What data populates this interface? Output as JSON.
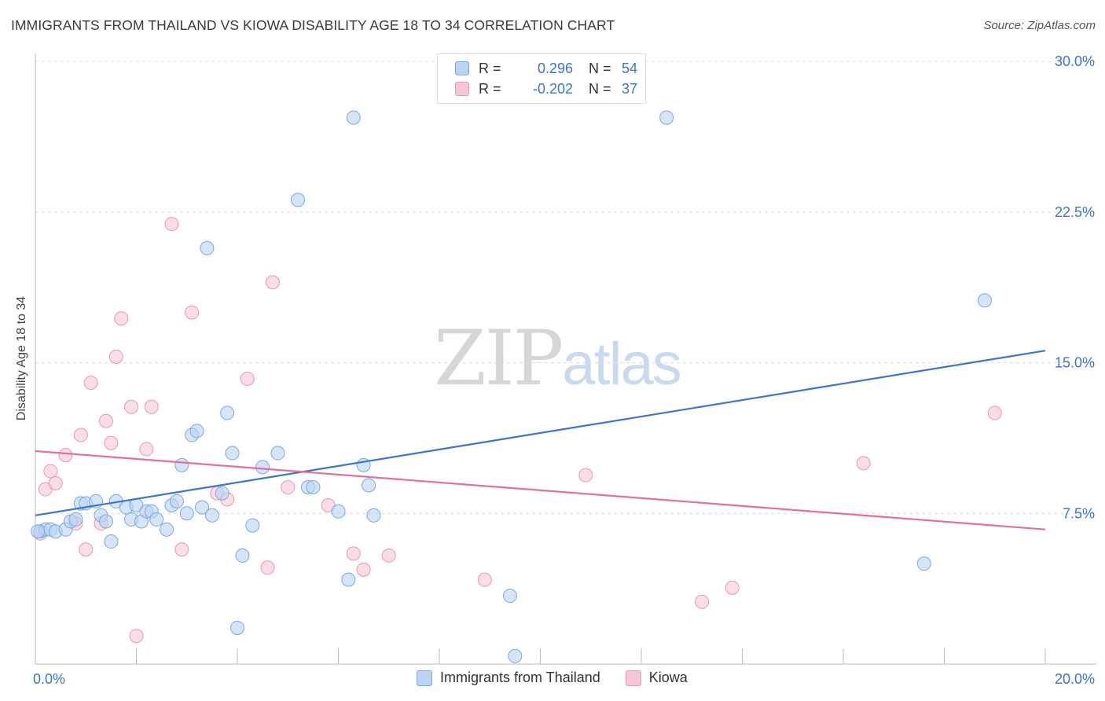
{
  "title": "IMMIGRANTS FROM THAILAND VS KIOWA DISABILITY AGE 18 TO 34 CORRELATION CHART",
  "source": "Source: ZipAtlas.com",
  "watermark": {
    "zip": "ZIP",
    "atlas": "atlas"
  },
  "legend": {
    "row1": {
      "r_label": "R =",
      "r_value": "0.296",
      "n_label": "N =",
      "n_value": "54"
    },
    "row2": {
      "r_label": "R =",
      "r_value": "-0.202",
      "n_label": "N =",
      "n_value": "37"
    }
  },
  "colors": {
    "blue_fill": "#b9d3f2",
    "blue_stroke": "#7aa8e0",
    "blue_line": "#3a76d0",
    "pink_fill": "#f7c6d4",
    "pink_stroke": "#e898b0",
    "pink_line": "#e66f99"
  },
  "chart_data": {
    "type": "scatter",
    "title": "IMMIGRANTS FROM THAILAND VS KIOWA DISABILITY AGE 18 TO 34 CORRELATION CHART",
    "xlabel": "",
    "ylabel": "Disability Age 18 to 34",
    "xlim": [
      0,
      20
    ],
    "ylim": [
      0,
      30
    ],
    "x_tick_labels": [
      "0.0%",
      "20.0%"
    ],
    "y_ticks": [
      7.5,
      15.0,
      22.5,
      30.0
    ],
    "y_tick_labels": [
      "7.5%",
      "15.0%",
      "22.5%",
      "30.0%"
    ],
    "grid": true,
    "legend_position": "top-center",
    "series": [
      {
        "name": "Immigrants from Thailand",
        "color": "#7aa8e0",
        "trend": [
          [
            0,
            7.4
          ],
          [
            20,
            15.6
          ]
        ],
        "points": [
          [
            0.1,
            6.6
          ],
          [
            0.2,
            6.7
          ],
          [
            0.3,
            6.7
          ],
          [
            0.4,
            6.6
          ],
          [
            0.6,
            6.7
          ],
          [
            0.7,
            7.1
          ],
          [
            0.8,
            7.2
          ],
          [
            0.9,
            8.0
          ],
          [
            1.0,
            8.0
          ],
          [
            1.2,
            8.1
          ],
          [
            1.3,
            7.4
          ],
          [
            1.4,
            7.1
          ],
          [
            1.5,
            6.1
          ],
          [
            1.6,
            8.1
          ],
          [
            1.8,
            7.8
          ],
          [
            1.9,
            7.2
          ],
          [
            2.0,
            7.9
          ],
          [
            2.1,
            7.1
          ],
          [
            2.2,
            7.6
          ],
          [
            2.3,
            7.6
          ],
          [
            2.4,
            7.2
          ],
          [
            2.6,
            6.7
          ],
          [
            2.7,
            7.9
          ],
          [
            2.8,
            8.1
          ],
          [
            2.9,
            9.9
          ],
          [
            3.0,
            7.5
          ],
          [
            3.1,
            11.4
          ],
          [
            3.2,
            11.6
          ],
          [
            3.3,
            7.8
          ],
          [
            3.4,
            20.7
          ],
          [
            3.5,
            7.4
          ],
          [
            3.7,
            8.5
          ],
          [
            3.8,
            12.5
          ],
          [
            3.9,
            10.5
          ],
          [
            4.0,
            1.8
          ],
          [
            4.1,
            5.4
          ],
          [
            4.3,
            6.9
          ],
          [
            4.5,
            9.8
          ],
          [
            4.8,
            10.5
          ],
          [
            5.2,
            23.1
          ],
          [
            5.4,
            8.8
          ],
          [
            5.5,
            8.8
          ],
          [
            6.0,
            7.6
          ],
          [
            6.2,
            4.2
          ],
          [
            6.3,
            27.2
          ],
          [
            6.5,
            9.9
          ],
          [
            6.6,
            8.9
          ],
          [
            6.7,
            7.4
          ],
          [
            9.4,
            3.4
          ],
          [
            9.5,
            0.4
          ],
          [
            12.5,
            27.2
          ],
          [
            17.6,
            5.0
          ],
          [
            18.8,
            18.1
          ],
          [
            0.05,
            6.6
          ]
        ]
      },
      {
        "name": "Kiowa",
        "color": "#e898b0",
        "trend": [
          [
            0,
            10.6
          ],
          [
            20,
            6.7
          ]
        ],
        "points": [
          [
            0.1,
            6.5
          ],
          [
            0.2,
            8.7
          ],
          [
            0.3,
            9.6
          ],
          [
            0.4,
            9.0
          ],
          [
            0.6,
            10.4
          ],
          [
            0.8,
            7.0
          ],
          [
            0.9,
            11.4
          ],
          [
            1.0,
            5.7
          ],
          [
            1.1,
            14.0
          ],
          [
            1.3,
            7.0
          ],
          [
            1.4,
            12.1
          ],
          [
            1.5,
            11.0
          ],
          [
            1.6,
            15.3
          ],
          [
            1.7,
            17.2
          ],
          [
            1.9,
            12.8
          ],
          [
            2.0,
            1.4
          ],
          [
            2.2,
            10.7
          ],
          [
            2.3,
            12.8
          ],
          [
            2.7,
            21.9
          ],
          [
            2.9,
            5.7
          ],
          [
            3.1,
            17.5
          ],
          [
            3.6,
            8.5
          ],
          [
            3.8,
            8.2
          ],
          [
            4.2,
            14.2
          ],
          [
            4.6,
            4.8
          ],
          [
            4.7,
            19.0
          ],
          [
            5.0,
            8.8
          ],
          [
            5.8,
            7.9
          ],
          [
            6.3,
            5.5
          ],
          [
            6.5,
            4.7
          ],
          [
            7.0,
            5.4
          ],
          [
            8.9,
            4.2
          ],
          [
            10.9,
            9.4
          ],
          [
            13.2,
            3.1
          ],
          [
            13.8,
            3.8
          ],
          [
            16.4,
            10.0
          ],
          [
            19.0,
            12.5
          ]
        ]
      }
    ]
  },
  "bottom_legend": {
    "item1": "Immigrants from Thailand",
    "item2": "Kiowa"
  }
}
